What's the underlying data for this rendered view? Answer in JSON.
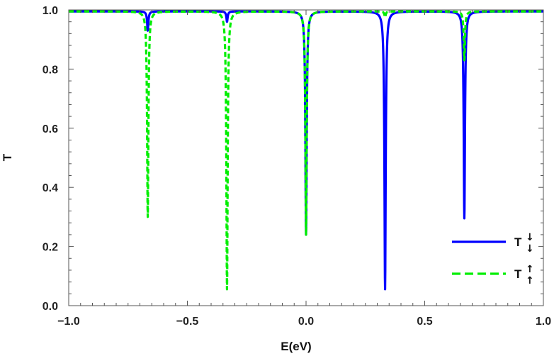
{
  "chart_data": {
    "type": "line",
    "title": "",
    "xlabel": "E(eV)",
    "ylabel": "T",
    "xlim": [
      -1.0,
      1.0
    ],
    "ylim": [
      0.0,
      1.0
    ],
    "x_ticks": [
      "-1.0",
      "-0.5",
      "0.0",
      "0.5",
      "1.0"
    ],
    "y_ticks": [
      "0.0",
      "0.2",
      "0.4",
      "0.6",
      "0.8",
      "1.0"
    ],
    "grid": false,
    "legend_position": "bottom-right",
    "series": [
      {
        "name": "T",
        "arrow_super": "↓",
        "arrow_sub": "↓",
        "style": "solid",
        "color": "#0000ff",
        "baseline": 0.995,
        "resonances": [
          {
            "energy": -0.667,
            "min": 0.93
          },
          {
            "energy": -0.333,
            "min": 0.96
          },
          {
            "energy": 0.0,
            "min": 0.24
          },
          {
            "energy": 0.333,
            "min": 0.055
          },
          {
            "energy": 0.667,
            "min": 0.295
          }
        ]
      },
      {
        "name": "T",
        "arrow_super": "↑",
        "arrow_sub": "↑",
        "style": "dashed",
        "color": "#00ee00",
        "baseline": 0.995,
        "resonances": [
          {
            "energy": -0.667,
            "min": 0.3
          },
          {
            "energy": -0.333,
            "min": 0.055
          },
          {
            "energy": 0.0,
            "min": 0.24
          },
          {
            "energy": 0.333,
            "min": 0.975
          },
          {
            "energy": 0.667,
            "min": 0.83
          }
        ]
      }
    ]
  }
}
